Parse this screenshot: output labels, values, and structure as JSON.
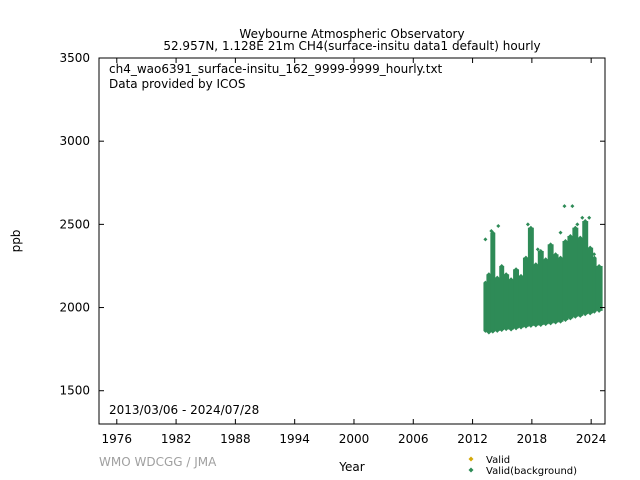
{
  "chart_data": {
    "type": "scatter",
    "title": "Weybourne Atmospheric Observatory",
    "subtitle": "52.957N, 1.128E 21m    CH4(surface-insitu data1 default) hourly",
    "file_label": "ch4_wao6391_surface-insitu_162_9999-9999_hourly.txt",
    "provider_label": "Data provided by ICOS",
    "period_label": "2013/03/06 - 2024/07/28",
    "xlabel": "Year",
    "ylabel": "ppb",
    "credit": "WMO WDCGG / JMA",
    "xlim": [
      1974.2,
      2025.4
    ],
    "ylim": [
      1300,
      3500
    ],
    "x_ticks": [
      1976,
      1982,
      1988,
      1994,
      2000,
      2006,
      2012,
      2018,
      2024
    ],
    "y_ticks": [
      1500,
      2000,
      2500,
      3000,
      3500
    ],
    "grid": false,
    "legend_position": "bottom-right",
    "legend": [
      {
        "name": "Valid",
        "color": "#d4a90a"
      },
      {
        "name": "Valid(background)",
        "color": "#2e8b57"
      }
    ],
    "series": [
      {
        "name": "Valid(background)",
        "color": "#2e8b57",
        "points": [
          {
            "x": 2013.2,
            "low": 1860,
            "high": 2150
          },
          {
            "x": 2013.5,
            "low": 1850,
            "high": 2200
          },
          {
            "x": 2013.9,
            "low": 1855,
            "high": 2450
          },
          {
            "x": 2014.3,
            "low": 1860,
            "high": 2180
          },
          {
            "x": 2014.8,
            "low": 1865,
            "high": 2250
          },
          {
            "x": 2015.2,
            "low": 1870,
            "high": 2200
          },
          {
            "x": 2015.7,
            "low": 1868,
            "high": 2170
          },
          {
            "x": 2016.2,
            "low": 1875,
            "high": 2230
          },
          {
            "x": 2016.7,
            "low": 1880,
            "high": 2190
          },
          {
            "x": 2017.2,
            "low": 1885,
            "high": 2300
          },
          {
            "x": 2017.7,
            "low": 1890,
            "high": 2480
          },
          {
            "x": 2018.2,
            "low": 1892,
            "high": 2260
          },
          {
            "x": 2018.7,
            "low": 1895,
            "high": 2340
          },
          {
            "x": 2019.2,
            "low": 1900,
            "high": 2290
          },
          {
            "x": 2019.7,
            "low": 1905,
            "high": 2380
          },
          {
            "x": 2020.2,
            "low": 1910,
            "high": 2320
          },
          {
            "x": 2020.7,
            "low": 1915,
            "high": 2300
          },
          {
            "x": 2021.2,
            "low": 1925,
            "high": 2400
          },
          {
            "x": 2021.7,
            "low": 1935,
            "high": 2430
          },
          {
            "x": 2022.2,
            "low": 1945,
            "high": 2480
          },
          {
            "x": 2022.7,
            "low": 1950,
            "high": 2420
          },
          {
            "x": 2023.2,
            "low": 1960,
            "high": 2520
          },
          {
            "x": 2023.7,
            "low": 1965,
            "high": 2360
          },
          {
            "x": 2024.2,
            "low": 1975,
            "high": 2300
          },
          {
            "x": 2024.55,
            "low": 1980,
            "high": 2250
          }
        ],
        "outliers": [
          {
            "x": 2013.3,
            "y": 2410
          },
          {
            "x": 2013.9,
            "y": 2460
          },
          {
            "x": 2014.6,
            "y": 2490
          },
          {
            "x": 2017.6,
            "y": 2500
          },
          {
            "x": 2017.9,
            "y": 2440
          },
          {
            "x": 2018.6,
            "y": 2350
          },
          {
            "x": 2020.9,
            "y": 2450
          },
          {
            "x": 2021.3,
            "y": 2610
          },
          {
            "x": 2022.1,
            "y": 2610
          },
          {
            "x": 2022.6,
            "y": 2500
          },
          {
            "x": 2023.1,
            "y": 2540
          },
          {
            "x": 2023.8,
            "y": 2540
          },
          {
            "x": 2024.3,
            "y": 2320
          }
        ]
      }
    ]
  }
}
